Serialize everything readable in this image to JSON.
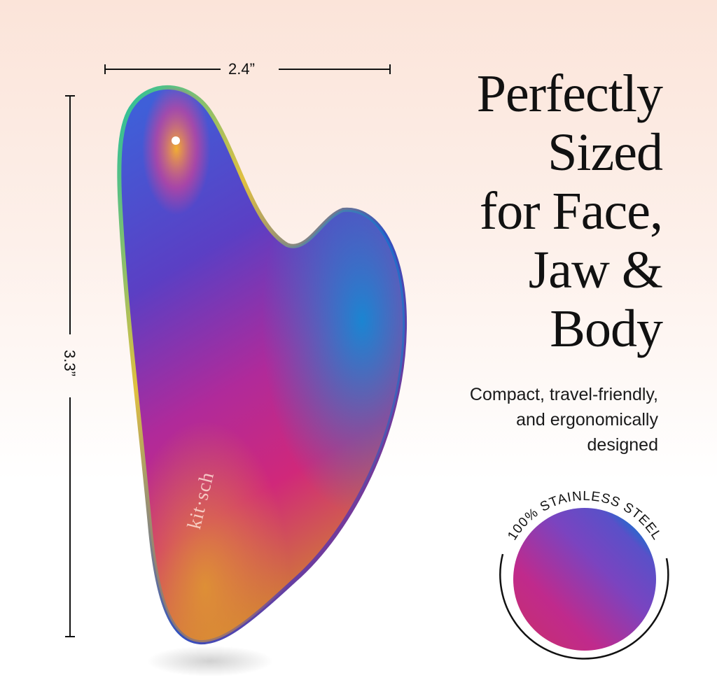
{
  "dimensions": {
    "width_label": "2.4”",
    "height_label": "3.3”"
  },
  "headline": {
    "lines": [
      "Perfectly",
      "Sized",
      "for Face,",
      "Jaw &",
      "Body"
    ]
  },
  "subheadline": {
    "lines": [
      "Compact, travel-friendly,",
      "and ergonomically",
      "designed"
    ]
  },
  "badge": {
    "text": "100% STAINLESS STEEL"
  },
  "product": {
    "brand_mark": "kit·sch",
    "icon": "gua-sha-tool"
  },
  "colors": {
    "background_top": "#fbe4d9",
    "background_bottom": "#ffffff",
    "text": "#111111",
    "iridescent_blue": "#1a6fd0",
    "iridescent_purple": "#6a3fc0",
    "iridescent_magenta": "#c8287a",
    "iridescent_orange": "#d9822a"
  }
}
